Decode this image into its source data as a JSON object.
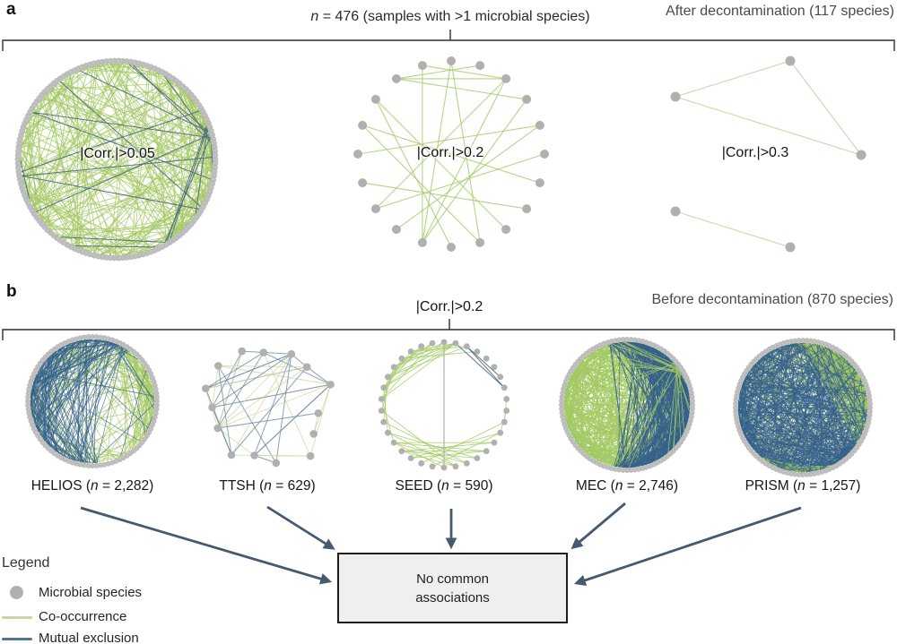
{
  "panel_a": {
    "label": "a",
    "sample_note": {
      "n_char": "n",
      "rest": " = 476 (samples with >1 microbial species)"
    },
    "title": "After decontamination (117 species)",
    "thresholds": {
      "left": "|Corr.|>0.05",
      "mid": "|Corr.|>0.2",
      "right": "|Corr.|>0.3"
    }
  },
  "panel_b": {
    "label": "b",
    "threshold": "|Corr.|>0.2",
    "title": "Before decontamination (870 species)",
    "cohorts": [
      {
        "name": "HELIOS",
        "pre": " (",
        "n_char": "n",
        "mid": " = ",
        "value": "2,282",
        "post": ")"
      },
      {
        "name": "TTSH",
        "pre": " (",
        "n_char": "n",
        "mid": " = ",
        "value": "629",
        "post": ")"
      },
      {
        "name": "SEED",
        "pre": " (",
        "n_char": "n",
        "mid": " = ",
        "value": "590",
        "post": ")"
      },
      {
        "name": "MEC",
        "pre": " (",
        "n_char": "n",
        "mid": " = ",
        "value": "2,746",
        "post": ")"
      },
      {
        "name": "PRISM",
        "pre": " (",
        "n_char": "n",
        "mid": " = ",
        "value": "1,257",
        "post": ")"
      }
    ]
  },
  "result_box": {
    "label": "No common associations"
  },
  "legend": {
    "title": "Legend",
    "items": [
      {
        "icon": "microbial-species-dot-icon",
        "label": "Microbial species"
      },
      {
        "icon": "co-occurrence-line-icon",
        "label": "Co-occurrence"
      },
      {
        "icon": "mutual-exclusion-line-icon",
        "label": "Mutual exclusion"
      }
    ]
  },
  "colors": {
    "co_occurrence_green": "#a3c964",
    "mutual_exclusion_blue": "#35608b",
    "edge_blue_soft": "#49677f",
    "pale_green": "#d6d9ba",
    "ttsh_green": "#d0d9a6",
    "ttsh_blue": "#6d8ca0",
    "node_gray": "#b0b0b0",
    "ring_gray": "#c0c0c0",
    "seed_gray_line": "#b5b5b5",
    "legend_green": "#c9d69c",
    "legend_blue": "#54748c",
    "arrow": "#46596e",
    "box_fill": "#efefef",
    "box_border": "#1d1d1d"
  }
}
